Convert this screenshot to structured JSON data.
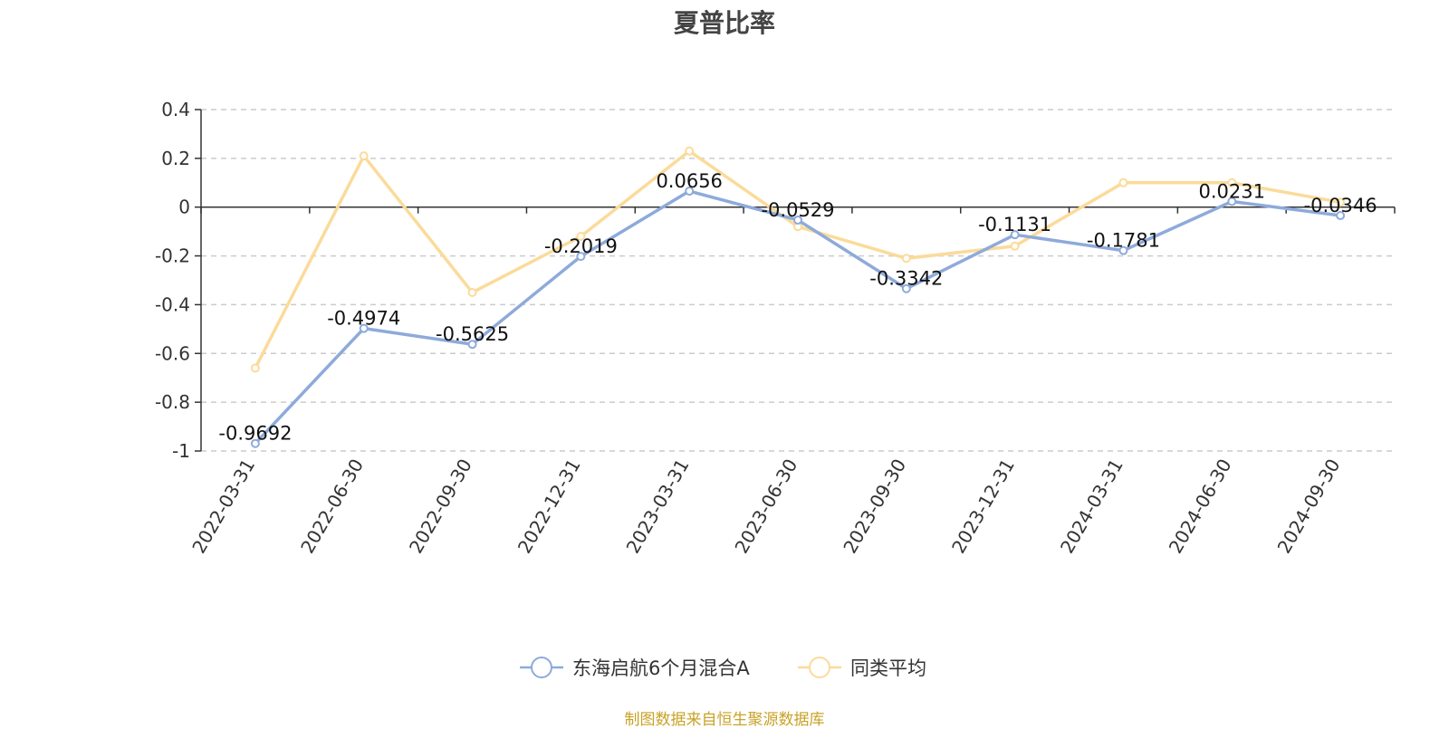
{
  "chart_data": {
    "type": "line",
    "title": "夏普比率",
    "categories": [
      "2022-03-31",
      "2022-06-30",
      "2022-09-30",
      "2022-12-31",
      "2023-03-31",
      "2023-06-30",
      "2023-09-30",
      "2023-12-31",
      "2024-03-31",
      "2024-06-30",
      "2024-09-30"
    ],
    "series": [
      {
        "name": "东海启航6个月混合A",
        "color": "#8eaadb",
        "values": [
          -0.9692,
          -0.4974,
          -0.5625,
          -0.2019,
          0.0656,
          -0.0529,
          -0.3342,
          -0.1131,
          -0.1781,
          0.0231,
          -0.0346
        ],
        "labels": [
          "-0.9692",
          "-0.4974",
          "-0.5625",
          "-0.2019",
          "0.0656",
          "-0.0529",
          "-0.3342",
          "-0.1131",
          "-0.1781",
          "0.0231",
          "-0.0346"
        ]
      },
      {
        "name": "同类平均",
        "color": "#fbdb9a",
        "values": [
          -0.66,
          0.21,
          -0.35,
          -0.12,
          0.23,
          -0.08,
          -0.21,
          -0.16,
          0.1,
          0.1,
          0.02
        ]
      }
    ],
    "yticks": [
      "0.4",
      "0.2",
      "0",
      "-0.2",
      "-0.4",
      "-0.6",
      "-0.8",
      "-1"
    ],
    "ylim": [
      -1,
      0.4
    ],
    "grid": true,
    "legend": "bottom-center"
  },
  "source_note": "制图数据来自恒生聚源数据库"
}
